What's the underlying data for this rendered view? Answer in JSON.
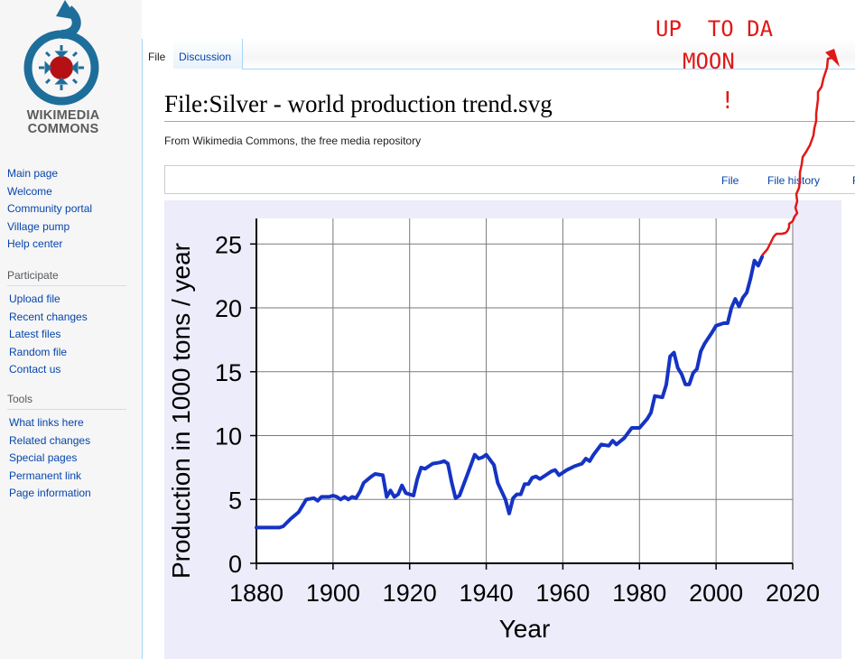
{
  "logo": {
    "line1": "WIKIMEDIA",
    "line2": "COMMONS"
  },
  "sidebar": {
    "navigation": [
      "Main page",
      "Welcome",
      "Community portal",
      "Village pump",
      "Help center"
    ],
    "participate": {
      "heading": "Participate",
      "items": [
        "Upload file",
        "Recent changes",
        "Latest files",
        "Random file",
        "Contact us"
      ]
    },
    "tools": {
      "heading": "Tools",
      "items": [
        "What links here",
        "Related changes",
        "Special pages",
        "Permanent link",
        "Page information"
      ]
    }
  },
  "tabs": [
    {
      "label": "File"
    },
    {
      "label": "Discussion"
    }
  ],
  "page": {
    "title": "File:Silver - world production trend.svg",
    "tagline": "From Wikimedia Commons, the free media repository"
  },
  "file_toc": {
    "items": [
      "File",
      "File history",
      "F"
    ]
  },
  "annotation": {
    "line1": "UP  TO DA",
    "line2": "MOON",
    "mark": "!",
    "color": "#e01818"
  },
  "chart_data": {
    "type": "line",
    "title": "",
    "xlabel": "Year",
    "ylabel": "Production in 1000 tons / year",
    "xlim": [
      1880,
      2020
    ],
    "ylim": [
      0,
      27
    ],
    "xticks": [
      1880,
      1900,
      1920,
      1940,
      1960,
      1980,
      2000,
      2020
    ],
    "yticks": [
      0,
      5,
      10,
      15,
      20,
      25
    ],
    "grid": true,
    "series": [
      {
        "color": "#1533c4",
        "points": [
          [
            1880,
            2.8
          ],
          [
            1886,
            2.8
          ],
          [
            1887,
            2.9
          ],
          [
            1889,
            3.5
          ],
          [
            1891,
            4.0
          ],
          [
            1893,
            5.0
          ],
          [
            1895,
            5.1
          ],
          [
            1896,
            4.9
          ],
          [
            1897,
            5.2
          ],
          [
            1899,
            5.2
          ],
          [
            1900,
            5.3
          ],
          [
            1901,
            5.2
          ],
          [
            1902,
            5.0
          ],
          [
            1903,
            5.2
          ],
          [
            1904,
            5.0
          ],
          [
            1905,
            5.2
          ],
          [
            1906,
            5.1
          ],
          [
            1907,
            5.6
          ],
          [
            1908,
            6.3
          ],
          [
            1910,
            6.8
          ],
          [
            1911,
            7.0
          ],
          [
            1913,
            6.9
          ],
          [
            1914,
            5.2
          ],
          [
            1915,
            5.7
          ],
          [
            1916,
            5.2
          ],
          [
            1917,
            5.4
          ],
          [
            1918,
            6.1
          ],
          [
            1919,
            5.5
          ],
          [
            1921,
            5.3
          ],
          [
            1922,
            6.6
          ],
          [
            1923,
            7.5
          ],
          [
            1924,
            7.4
          ],
          [
            1926,
            7.8
          ],
          [
            1928,
            7.9
          ],
          [
            1929,
            8.0
          ],
          [
            1930,
            7.8
          ],
          [
            1931,
            6.3
          ],
          [
            1932,
            5.1
          ],
          [
            1933,
            5.3
          ],
          [
            1935,
            6.9
          ],
          [
            1937,
            8.5
          ],
          [
            1938,
            8.2
          ],
          [
            1939,
            8.3
          ],
          [
            1940,
            8.5
          ],
          [
            1942,
            7.7
          ],
          [
            1943,
            6.3
          ],
          [
            1945,
            5.0
          ],
          [
            1946,
            3.9
          ],
          [
            1947,
            5.1
          ],
          [
            1948,
            5.4
          ],
          [
            1949,
            5.4
          ],
          [
            1950,
            6.2
          ],
          [
            1951,
            6.2
          ],
          [
            1952,
            6.7
          ],
          [
            1953,
            6.8
          ],
          [
            1954,
            6.6
          ],
          [
            1956,
            7.0
          ],
          [
            1957,
            7.2
          ],
          [
            1958,
            7.3
          ],
          [
            1959,
            6.9
          ],
          [
            1961,
            7.3
          ],
          [
            1963,
            7.6
          ],
          [
            1965,
            7.8
          ],
          [
            1966,
            8.2
          ],
          [
            1967,
            8.0
          ],
          [
            1968,
            8.5
          ],
          [
            1970,
            9.3
          ],
          [
            1972,
            9.2
          ],
          [
            1973,
            9.6
          ],
          [
            1974,
            9.3
          ],
          [
            1976,
            9.8
          ],
          [
            1978,
            10.6
          ],
          [
            1980,
            10.6
          ],
          [
            1982,
            11.3
          ],
          [
            1983,
            11.8
          ],
          [
            1984,
            13.1
          ],
          [
            1986,
            13.0
          ],
          [
            1987,
            14.0
          ],
          [
            1988,
            16.2
          ],
          [
            1989,
            16.5
          ],
          [
            1990,
            15.3
          ],
          [
            1991,
            14.8
          ],
          [
            1992,
            14.0
          ],
          [
            1993,
            14.0
          ],
          [
            1994,
            14.9
          ],
          [
            1995,
            15.2
          ],
          [
            1996,
            16.6
          ],
          [
            1997,
            17.2
          ],
          [
            1999,
            18.1
          ],
          [
            2000,
            18.6
          ],
          [
            2001,
            18.7
          ],
          [
            2002,
            18.8
          ],
          [
            2003,
            18.8
          ],
          [
            2004,
            20.0
          ],
          [
            2005,
            20.7
          ],
          [
            2006,
            20.1
          ],
          [
            2007,
            20.8
          ],
          [
            2008,
            21.2
          ],
          [
            2009,
            22.3
          ],
          [
            2010,
            23.7
          ],
          [
            2011,
            23.3
          ],
          [
            2012,
            24.0
          ]
        ]
      }
    ]
  }
}
